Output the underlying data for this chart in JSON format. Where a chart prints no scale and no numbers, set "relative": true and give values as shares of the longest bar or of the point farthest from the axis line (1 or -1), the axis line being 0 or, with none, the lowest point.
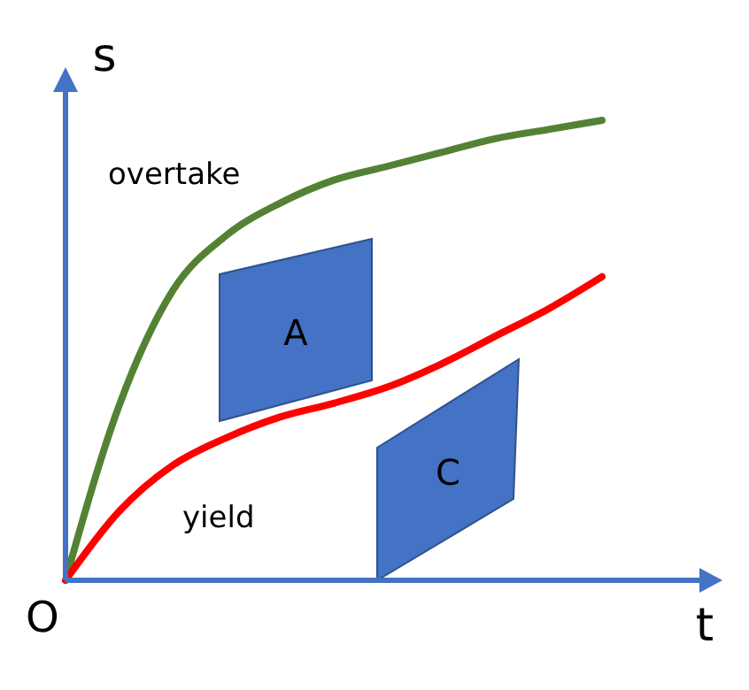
{
  "chart_data": {
    "type": "line",
    "relative": true,
    "xlabel": "t",
    "ylabel": "s",
    "categories": [
      null,
      null,
      null,
      null,
      null,
      null,
      null,
      null,
      null,
      null,
      null
    ],
    "series": [
      {
        "color": "#548235",
        "values": [
          0,
          0.38,
          0.63,
          0.75,
          0.82,
          0.87,
          0.9,
          0.93,
          0.96,
          0.98,
          1
        ]
      },
      {
        "color": "#ff0000",
        "values": [
          0,
          0.15,
          0.25,
          0.31,
          0.355,
          0.385,
          0.42,
          0.47,
          0.53,
          0.59,
          0.66
        ]
      }
    ],
    "annotations": [
      "O",
      "overtake",
      "yield",
      "A",
      "C"
    ],
    "line_style": "solid"
  }
}
